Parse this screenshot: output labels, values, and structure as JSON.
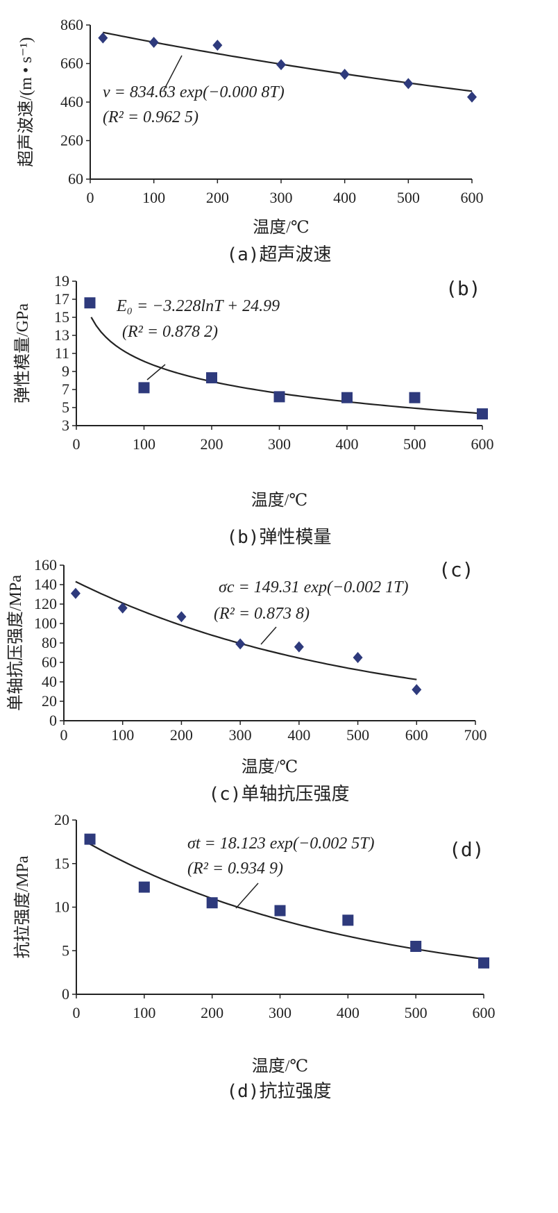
{
  "chart_data": [
    {
      "type": "scatter",
      "panel": "(a)",
      "caption": "(a)超声波速",
      "xlabel": "温度/℃",
      "ylabel": "超声波速/(m • s⁻¹)",
      "xlim": [
        0,
        600
      ],
      "ylim": [
        60,
        860
      ],
      "xticks": [
        "0",
        "100",
        "200",
        "300",
        "400",
        "500",
        "600"
      ],
      "yticks": [
        "60",
        "260",
        "460",
        "660",
        "860"
      ],
      "marker": "diamond",
      "color": "#2e3a7c",
      "points": [
        {
          "x": 20,
          "y": 793
        },
        {
          "x": 100,
          "y": 770
        },
        {
          "x": 200,
          "y": 755
        },
        {
          "x": 300,
          "y": 654
        },
        {
          "x": 400,
          "y": 604
        },
        {
          "x": 500,
          "y": 556
        },
        {
          "x": 600,
          "y": 486
        }
      ],
      "fit": {
        "kind": "exp",
        "a": 834.63,
        "b": -0.0008,
        "from": 20,
        "to": 600
      },
      "equation": "v = 834.63 exp(−0.000 8T)",
      "r2": "(R² = 0.962 5)"
    },
    {
      "type": "scatter",
      "panel": "(b)",
      "caption": "(b)弹性模量",
      "xlabel": "温度/℃",
      "ylabel": "弹性模量/GPa",
      "xlim": [
        0,
        600
      ],
      "ylim": [
        3,
        19
      ],
      "xticks": [
        "0",
        "100",
        "200",
        "300",
        "400",
        "500",
        "600"
      ],
      "yticks": [
        "3",
        "5",
        "7",
        "9",
        "11",
        "13",
        "15",
        "17",
        "19"
      ],
      "marker": "square",
      "color": "#2e3a7c",
      "points": [
        {
          "x": 20,
          "y": 16.6
        },
        {
          "x": 100,
          "y": 7.2
        },
        {
          "x": 200,
          "y": 8.3
        },
        {
          "x": 300,
          "y": 6.2
        },
        {
          "x": 400,
          "y": 6.1
        },
        {
          "x": 500,
          "y": 6.1
        },
        {
          "x": 600,
          "y": 4.3
        }
      ],
      "fit": {
        "kind": "log",
        "a": -3.228,
        "b": 24.99,
        "from": 22,
        "to": 600
      },
      "equation": "E₀ = −3.228lnT + 24.99",
      "r2": "(R² = 0.878 2)"
    },
    {
      "type": "scatter",
      "panel": "(c)",
      "caption": "(c)单轴抗压强度",
      "xlabel": "温度/℃",
      "ylabel": "单轴抗压强度/MPa",
      "xlim": [
        0,
        700
      ],
      "ylim": [
        0,
        160
      ],
      "xticks": [
        "0",
        "100",
        "200",
        "300",
        "400",
        "500",
        "600",
        "700"
      ],
      "yticks": [
        "0",
        "20",
        "40",
        "60",
        "80",
        "100",
        "120",
        "140",
        "160"
      ],
      "marker": "diamond",
      "color": "#2e3a7c",
      "points": [
        {
          "x": 20,
          "y": 131
        },
        {
          "x": 100,
          "y": 116
        },
        {
          "x": 200,
          "y": 107
        },
        {
          "x": 300,
          "y": 79
        },
        {
          "x": 400,
          "y": 76
        },
        {
          "x": 500,
          "y": 65
        },
        {
          "x": 600,
          "y": 32
        }
      ],
      "fit": {
        "kind": "exp",
        "a": 149.31,
        "b": -0.0021,
        "from": 20,
        "to": 600
      },
      "equation": "σc = 149.31 exp(−0.002 1T)",
      "r2": "(R² = 0.873 8)"
    },
    {
      "type": "scatter",
      "panel": "(d)",
      "caption": "(d)抗拉强度",
      "xlabel": "温度/℃",
      "ylabel": "抗拉强度/MPa",
      "xlim": [
        0,
        600
      ],
      "ylim": [
        0,
        20
      ],
      "xticks": [
        "0",
        "100",
        "200",
        "300",
        "400",
        "500",
        "600"
      ],
      "yticks": [
        "0",
        "5",
        "10",
        "15",
        "20"
      ],
      "marker": "square",
      "color": "#2e3a7c",
      "points": [
        {
          "x": 20,
          "y": 17.8
        },
        {
          "x": 100,
          "y": 12.3
        },
        {
          "x": 200,
          "y": 10.5
        },
        {
          "x": 300,
          "y": 9.6
        },
        {
          "x": 400,
          "y": 8.5
        },
        {
          "x": 500,
          "y": 5.5
        },
        {
          "x": 600,
          "y": 3.6
        }
      ],
      "fit": {
        "kind": "exp",
        "a": 18.123,
        "b": -0.0025,
        "from": 20,
        "to": 600
      },
      "equation": "σt = 18.123 exp(−0.002 5T)",
      "r2": "(R² = 0.934 9)"
    }
  ]
}
